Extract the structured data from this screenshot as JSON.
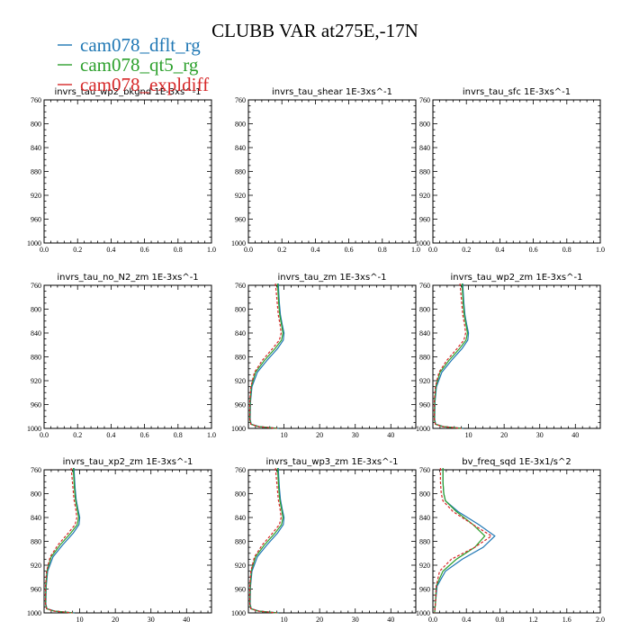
{
  "figure_title": "CLUBB VAR at275E,-17N",
  "legend": [
    {
      "label": "cam078_dflt_rg",
      "color": "#1f77b4"
    },
    {
      "label": "cam078_qt5_rg",
      "color": "#2ca02c"
    },
    {
      "label": "cam078_expldiff",
      "color": "#d62728"
    }
  ],
  "chart_data": [
    {
      "type": "line",
      "title": "invrs_tau_wp2_bkgnd 1E-3xs^-1",
      "xlim": [
        0.0,
        1.0
      ],
      "xticks": [
        0.0,
        0.2,
        0.4,
        0.6,
        0.8,
        1.0
      ],
      "xtick_labels": [
        "0.0",
        "0.2",
        "0.4",
        "0.6",
        "0.8",
        "1.0"
      ],
      "ylim": [
        760,
        1000
      ],
      "yticks": [
        760,
        800,
        840,
        880,
        920,
        960,
        1000
      ],
      "y_inverted": true,
      "series": []
    },
    {
      "type": "line",
      "title": "invrs_tau_shear 1E-3xs^-1",
      "xlim": [
        0.0,
        1.0
      ],
      "xticks": [
        0.0,
        0.2,
        0.4,
        0.6,
        0.8,
        1.0
      ],
      "xtick_labels": [
        "0.0",
        "0.2",
        "0.4",
        "0.6",
        "0.8",
        "1.0"
      ],
      "ylim": [
        760,
        1000
      ],
      "yticks": [
        760,
        800,
        840,
        880,
        920,
        960,
        1000
      ],
      "y_inverted": true,
      "series": []
    },
    {
      "type": "line",
      "title": "invrs_tau_sfc 1E-3xs^-1",
      "xlim": [
        0.0,
        1.0
      ],
      "xticks": [
        0.0,
        0.2,
        0.4,
        0.6,
        0.8,
        1.0
      ],
      "xtick_labels": [
        "0.0",
        "0.2",
        "0.4",
        "0.6",
        "0.8",
        "1.0"
      ],
      "ylim": [
        760,
        1000
      ],
      "yticks": [
        760,
        800,
        840,
        880,
        920,
        960,
        1000
      ],
      "y_inverted": true,
      "series": []
    },
    {
      "type": "line",
      "title": "invrs_tau_no_N2_zm 1E-3xs^-1",
      "xlim": [
        0.0,
        1.0
      ],
      "xticks": [
        0.0,
        0.2,
        0.4,
        0.6,
        0.8,
        1.0
      ],
      "xtick_labels": [
        "0.0",
        "0.2",
        "0.4",
        "0.6",
        "0.8",
        "1.0"
      ],
      "ylim": [
        760,
        1000
      ],
      "yticks": [
        760,
        800,
        840,
        880,
        920,
        960,
        1000
      ],
      "y_inverted": true,
      "series": []
    },
    {
      "type": "line",
      "title": "invrs_tau_zm 1E-3xs^-1",
      "xlim": [
        0,
        47
      ],
      "xticks": [
        10,
        20,
        30,
        40
      ],
      "xtick_labels": [
        "10",
        "20",
        "30",
        "40"
      ],
      "ylim": [
        760,
        1000
      ],
      "yticks": [
        760,
        800,
        840,
        880,
        920,
        960,
        1000
      ],
      "y_inverted": true,
      "series": [
        {
          "color": "#1f77b4",
          "dash": false,
          "x": [
            8.4,
            8.5,
            8.7,
            9.0,
            9.5,
            10.0,
            9.8,
            8.2,
            5.2,
            2.5,
            1.0,
            0.6,
            0.5,
            0.8,
            3.0,
            8.5
          ],
          "y": [
            757,
            770,
            790,
            810,
            826,
            840,
            852,
            866,
            886,
            906,
            930,
            955,
            985,
            993,
            997,
            1000
          ]
        },
        {
          "color": "#2ca02c",
          "dash": false,
          "x": [
            8.2,
            8.3,
            8.5,
            8.8,
            9.3,
            9.7,
            9.3,
            7.5,
            4.5,
            2.0,
            0.8,
            0.5,
            0.4,
            0.7,
            2.8,
            8.2
          ],
          "y": [
            757,
            770,
            790,
            810,
            826,
            840,
            852,
            866,
            886,
            906,
            930,
            955,
            985,
            993,
            997,
            1000
          ]
        },
        {
          "color": "#d62728",
          "dash": true,
          "x": [
            7.6,
            7.8,
            8.1,
            8.4,
            8.9,
            9.2,
            8.7,
            6.8,
            3.9,
            1.7,
            0.7,
            0.4,
            0.4,
            0.7,
            2.8,
            8.0
          ],
          "y": [
            757,
            770,
            790,
            810,
            826,
            840,
            852,
            866,
            886,
            906,
            930,
            955,
            985,
            993,
            997,
            1000
          ]
        }
      ]
    },
    {
      "type": "line",
      "title": "invrs_tau_wp2_zm 1E-3xs^-1",
      "xlim": [
        0,
        47
      ],
      "xticks": [
        10,
        20,
        30,
        40
      ],
      "xtick_labels": [
        "10",
        "20",
        "30",
        "40"
      ],
      "ylim": [
        760,
        1000
      ],
      "yticks": [
        760,
        800,
        840,
        880,
        920,
        960,
        1000
      ],
      "y_inverted": true,
      "series": [
        {
          "color": "#1f77b4",
          "dash": false,
          "x": [
            8.4,
            8.5,
            8.7,
            9.0,
            9.5,
            10.0,
            9.8,
            8.2,
            5.2,
            2.5,
            1.0,
            0.6,
            0.5,
            0.8,
            3.0,
            8.5
          ],
          "y": [
            757,
            770,
            790,
            810,
            826,
            840,
            852,
            866,
            886,
            906,
            930,
            955,
            985,
            993,
            997,
            1000
          ]
        },
        {
          "color": "#2ca02c",
          "dash": false,
          "x": [
            8.2,
            8.3,
            8.5,
            8.8,
            9.3,
            9.7,
            9.3,
            7.5,
            4.5,
            2.0,
            0.8,
            0.5,
            0.4,
            0.7,
            2.8,
            8.2
          ],
          "y": [
            757,
            770,
            790,
            810,
            826,
            840,
            852,
            866,
            886,
            906,
            930,
            955,
            985,
            993,
            997,
            1000
          ]
        },
        {
          "color": "#d62728",
          "dash": true,
          "x": [
            7.6,
            7.8,
            8.1,
            8.4,
            8.9,
            9.2,
            8.7,
            6.8,
            3.9,
            1.7,
            0.7,
            0.4,
            0.4,
            0.7,
            2.8,
            8.0
          ],
          "y": [
            757,
            770,
            790,
            810,
            826,
            840,
            852,
            866,
            886,
            906,
            930,
            955,
            985,
            993,
            997,
            1000
          ]
        }
      ]
    },
    {
      "type": "line",
      "title": "invrs_tau_xp2_zm 1E-3xs^-1",
      "xlim": [
        0,
        47
      ],
      "xticks": [
        10,
        20,
        30,
        40
      ],
      "xtick_labels": [
        "10",
        "20",
        "30",
        "40"
      ],
      "ylim": [
        760,
        1000
      ],
      "yticks": [
        760,
        800,
        840,
        880,
        920,
        960,
        1000
      ],
      "y_inverted": true,
      "series": [
        {
          "color": "#1f77b4",
          "dash": false,
          "x": [
            8.4,
            8.5,
            8.7,
            9.0,
            9.5,
            10.0,
            9.8,
            8.2,
            5.2,
            2.5,
            1.0,
            0.6,
            0.5,
            0.8,
            3.0,
            8.5
          ],
          "y": [
            757,
            770,
            790,
            810,
            826,
            840,
            852,
            866,
            886,
            906,
            930,
            955,
            985,
            993,
            997,
            1000
          ]
        },
        {
          "color": "#2ca02c",
          "dash": false,
          "x": [
            8.2,
            8.3,
            8.5,
            8.8,
            9.3,
            9.7,
            9.3,
            7.5,
            4.5,
            2.0,
            0.8,
            0.5,
            0.4,
            0.7,
            2.8,
            8.2
          ],
          "y": [
            757,
            770,
            790,
            810,
            826,
            840,
            852,
            866,
            886,
            906,
            930,
            955,
            985,
            993,
            997,
            1000
          ]
        },
        {
          "color": "#d62728",
          "dash": true,
          "x": [
            7.6,
            7.8,
            8.1,
            8.4,
            8.9,
            9.2,
            8.7,
            6.8,
            3.9,
            1.7,
            0.7,
            0.4,
            0.4,
            0.7,
            2.8,
            8.0
          ],
          "y": [
            757,
            770,
            790,
            810,
            826,
            840,
            852,
            866,
            886,
            906,
            930,
            955,
            985,
            993,
            997,
            1000
          ]
        }
      ]
    },
    {
      "type": "line",
      "title": "invrs_tau_wp3_zm 1E-3xs^-1",
      "xlim": [
        0,
        47
      ],
      "xticks": [
        10,
        20,
        30,
        40
      ],
      "xtick_labels": [
        "10",
        "20",
        "30",
        "40"
      ],
      "ylim": [
        760,
        1000
      ],
      "yticks": [
        760,
        800,
        840,
        880,
        920,
        960,
        1000
      ],
      "y_inverted": true,
      "series": [
        {
          "color": "#1f77b4",
          "dash": false,
          "x": [
            8.4,
            8.5,
            8.7,
            9.0,
            9.5,
            10.0,
            9.8,
            8.2,
            5.2,
            2.5,
            1.0,
            0.6,
            0.5,
            0.8,
            3.0,
            8.5
          ],
          "y": [
            757,
            770,
            790,
            810,
            826,
            840,
            852,
            866,
            886,
            906,
            930,
            955,
            985,
            993,
            997,
            1000
          ]
        },
        {
          "color": "#2ca02c",
          "dash": false,
          "x": [
            8.2,
            8.3,
            8.5,
            8.8,
            9.3,
            9.7,
            9.3,
            7.5,
            4.5,
            2.0,
            0.8,
            0.5,
            0.4,
            0.7,
            2.8,
            8.2
          ],
          "y": [
            757,
            770,
            790,
            810,
            826,
            840,
            852,
            866,
            886,
            906,
            930,
            955,
            985,
            993,
            997,
            1000
          ]
        },
        {
          "color": "#d62728",
          "dash": true,
          "x": [
            7.6,
            7.8,
            8.1,
            8.4,
            8.9,
            9.2,
            8.7,
            6.8,
            3.9,
            1.7,
            0.7,
            0.4,
            0.4,
            0.7,
            2.8,
            8.0
          ],
          "y": [
            757,
            770,
            790,
            810,
            826,
            840,
            852,
            866,
            886,
            906,
            930,
            955,
            985,
            993,
            997,
            1000
          ]
        }
      ]
    },
    {
      "type": "line",
      "title": "bv_freq_sqd 1E-3x1/s^2",
      "xlim": [
        0.0,
        2.0
      ],
      "xticks": [
        0.0,
        0.4,
        0.8,
        1.2,
        1.6,
        2.0
      ],
      "xtick_labels": [
        "0.0",
        "0.4",
        "0.8",
        "1.2",
        "1.6",
        "2.0"
      ],
      "ylim": [
        760,
        1000
      ],
      "yticks": [
        760,
        800,
        840,
        880,
        920,
        960,
        1000
      ],
      "y_inverted": true,
      "series": [
        {
          "color": "#1f77b4",
          "dash": false,
          "x": [
            0.12,
            0.12,
            0.13,
            0.15,
            0.3,
            0.55,
            0.74,
            0.6,
            0.35,
            0.15,
            0.05,
            0.03,
            0.02
          ],
          "y": [
            757,
            780,
            800,
            812,
            830,
            852,
            871,
            890,
            910,
            930,
            955,
            985,
            1000
          ]
        },
        {
          "color": "#2ca02c",
          "dash": false,
          "x": [
            0.12,
            0.12,
            0.13,
            0.15,
            0.28,
            0.48,
            0.62,
            0.5,
            0.28,
            0.12,
            0.04,
            0.03,
            0.02
          ],
          "y": [
            757,
            780,
            800,
            812,
            830,
            852,
            871,
            890,
            910,
            930,
            955,
            985,
            1000
          ]
        },
        {
          "color": "#d62728",
          "dash": true,
          "x": [
            0.09,
            0.09,
            0.1,
            0.12,
            0.24,
            0.48,
            0.7,
            0.5,
            0.22,
            0.08,
            0.04,
            0.03,
            0.02
          ],
          "y": [
            757,
            780,
            800,
            812,
            830,
            852,
            871,
            890,
            910,
            930,
            955,
            985,
            1000
          ]
        }
      ]
    }
  ]
}
